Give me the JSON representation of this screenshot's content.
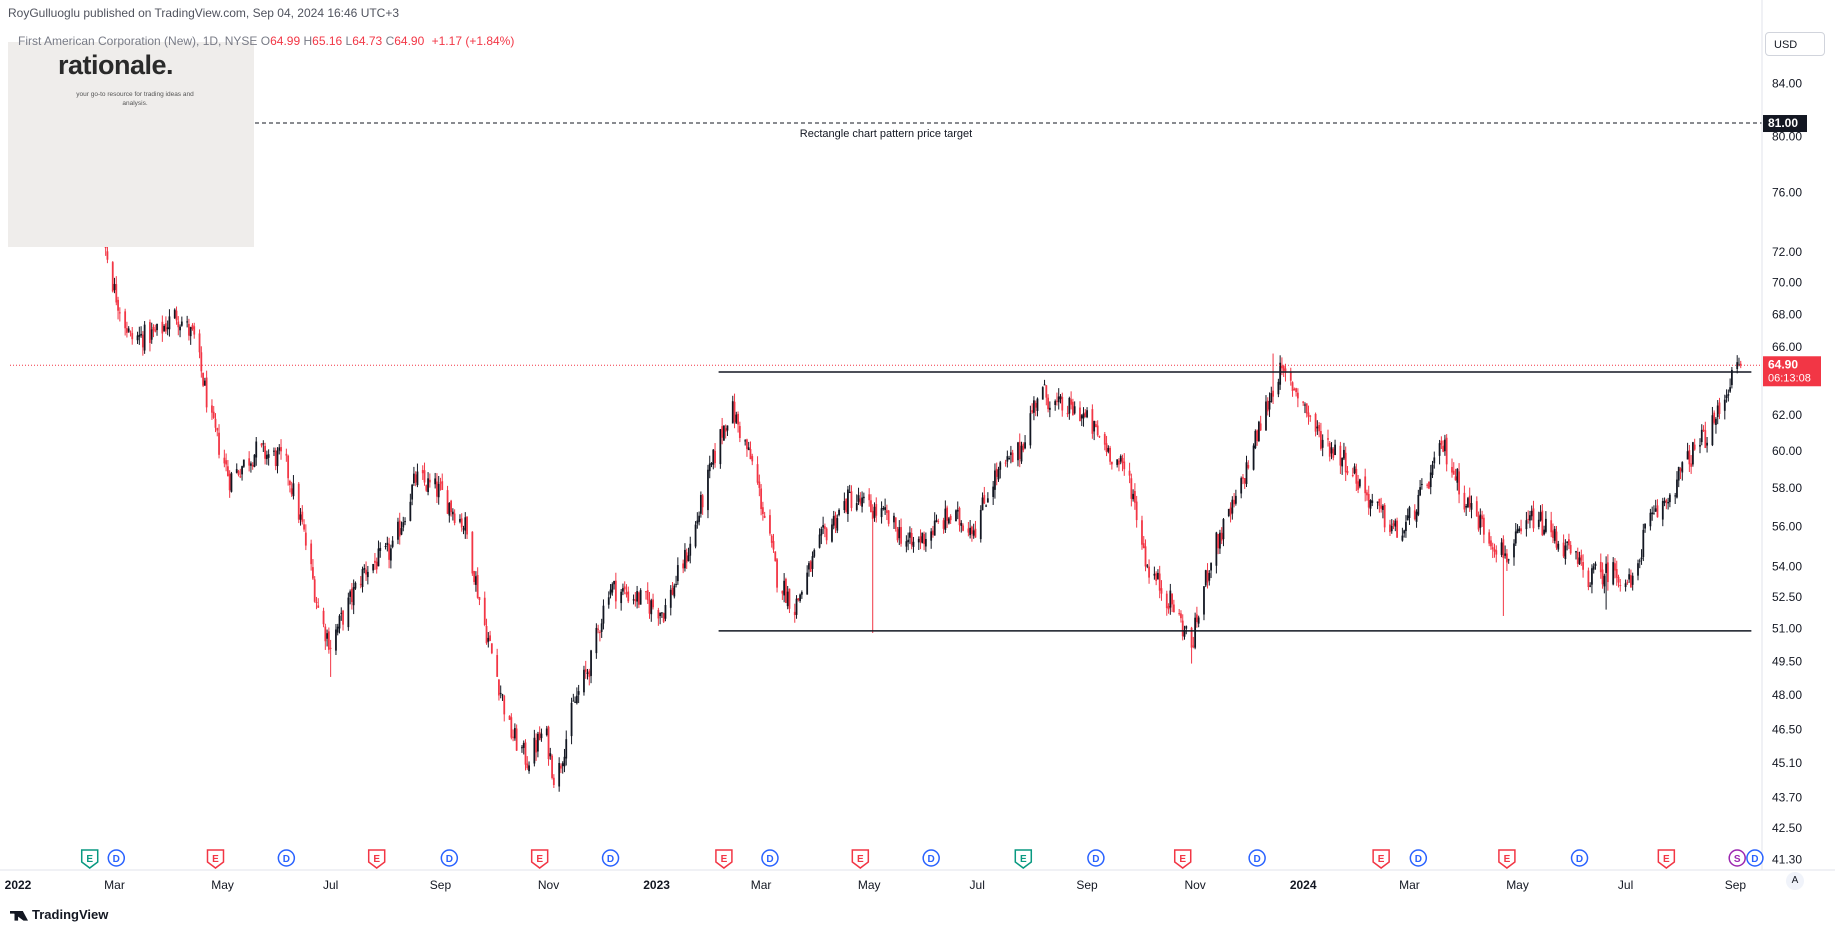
{
  "header": {
    "publisher": "RoyGulluoglu published on TradingView.com, Sep 04, 2024 16:46 UTC+3",
    "symbol": "First American Corporation (New), 1D, NYSE",
    "open_label": "O",
    "open": "64.99",
    "high_label": "H",
    "high": "65.16",
    "low_label": "L",
    "low": "64.73",
    "close_label": "C",
    "close": "64.90",
    "change": "+1.17 (+1.84%)"
  },
  "logo": {
    "title": "rationale.",
    "subtitle": "your go-to resource for trading ideas and analysis."
  },
  "currency": "USD",
  "footer": {
    "brand": "TradingView"
  },
  "autoscale": "A",
  "colors": {
    "up": "#131722",
    "down": "#f23645",
    "current": "#f23645"
  },
  "chart_data": {
    "type": "candlestick",
    "series_name": "First American Corporation (New)",
    "y_scale": "log",
    "ylim": [
      40.9,
      86.2
    ],
    "x_range": [
      "2022-01-01",
      "2024-09-16"
    ],
    "y_ticks": [
      "84.00",
      "80.00",
      "76.00",
      "72.00",
      "70.00",
      "68.00",
      "66.00",
      "62.00",
      "60.00",
      "58.00",
      "56.00",
      "54.00",
      "52.50",
      "51.00",
      "49.50",
      "48.00",
      "46.50",
      "45.10",
      "43.70",
      "42.50",
      "41.30"
    ],
    "x_ticks": [
      {
        "date": "2022-01-01",
        "label": "2022",
        "bold": true
      },
      {
        "date": "2022-03-01",
        "label": "Mar"
      },
      {
        "date": "2022-05-01",
        "label": "May"
      },
      {
        "date": "2022-07-01",
        "label": "Jul"
      },
      {
        "date": "2022-09-01",
        "label": "Sep"
      },
      {
        "date": "2022-11-01",
        "label": "Nov"
      },
      {
        "date": "2023-01-01",
        "label": "2023",
        "bold": true
      },
      {
        "date": "2023-03-01",
        "label": "Mar"
      },
      {
        "date": "2023-05-01",
        "label": "May"
      },
      {
        "date": "2023-07-01",
        "label": "Jul"
      },
      {
        "date": "2023-09-01",
        "label": "Sep"
      },
      {
        "date": "2023-11-01",
        "label": "Nov"
      },
      {
        "date": "2024-01-01",
        "label": "2024",
        "bold": true
      },
      {
        "date": "2024-03-01",
        "label": "Mar"
      },
      {
        "date": "2024-05-01",
        "label": "May"
      },
      {
        "date": "2024-07-01",
        "label": "Jul"
      },
      {
        "date": "2024-09-01",
        "label": "Sep"
      }
    ],
    "anchors": [
      [
        "2022-01-03",
        79.0
      ],
      [
        "2022-01-20",
        80.5
      ],
      [
        "2022-02-01",
        77.0
      ],
      [
        "2022-02-10",
        74.5
      ],
      [
        "2022-02-20",
        74.5
      ],
      [
        "2022-03-01",
        69.5
      ],
      [
        "2022-03-10",
        66.5
      ],
      [
        "2022-03-25",
        66.8
      ],
      [
        "2022-04-05",
        68.0
      ],
      [
        "2022-04-15",
        66.5
      ],
      [
        "2022-04-25",
        61.5
      ],
      [
        "2022-05-05",
        58.5
      ],
      [
        "2022-05-20",
        60.0
      ],
      [
        "2022-06-05",
        59.5
      ],
      [
        "2022-06-15",
        56.0
      ],
      [
        "2022-06-25",
        51.5
      ],
      [
        "2022-07-01",
        50.3
      ],
      [
        "2022-07-20",
        53.8
      ],
      [
        "2022-08-05",
        54.8
      ],
      [
        "2022-08-18",
        58.5
      ],
      [
        "2022-09-01",
        57.8
      ],
      [
        "2022-09-15",
        56.0
      ],
      [
        "2022-09-25",
        51.5
      ],
      [
        "2022-10-10",
        46.5
      ],
      [
        "2022-10-20",
        45.2
      ],
      [
        "2022-10-30",
        46.5
      ],
      [
        "2022-11-05",
        44.2
      ],
      [
        "2022-11-15",
        47.5
      ],
      [
        "2022-11-25",
        49.5
      ],
      [
        "2022-12-05",
        53.0
      ],
      [
        "2022-12-20",
        52.5
      ],
      [
        "2023-01-05",
        51.8
      ],
      [
        "2023-01-20",
        55.0
      ],
      [
        "2023-02-05",
        60.5
      ],
      [
        "2023-02-12",
        62.5
      ],
      [
        "2023-02-25",
        59.0
      ],
      [
        "2023-03-10",
        53.5
      ],
      [
        "2023-03-20",
        52.0
      ],
      [
        "2023-04-05",
        55.5
      ],
      [
        "2023-04-20",
        57.5
      ],
      [
        "2023-05-10",
        56.5
      ],
      [
        "2023-05-25",
        55.0
      ],
      [
        "2023-06-15",
        56.5
      ],
      [
        "2023-06-30",
        56.0
      ],
      [
        "2023-07-10",
        58.5
      ],
      [
        "2023-07-25",
        60.0
      ],
      [
        "2023-08-05",
        63.5
      ],
      [
        "2023-08-15",
        62.5
      ],
      [
        "2023-08-28",
        62.2
      ],
      [
        "2023-09-10",
        60.5
      ],
      [
        "2023-09-25",
        58.5
      ],
      [
        "2023-10-05",
        54.0
      ],
      [
        "2023-10-20",
        52.0
      ],
      [
        "2023-10-30",
        50.2
      ],
      [
        "2023-11-10",
        54.5
      ],
      [
        "2023-11-25",
        57.5
      ],
      [
        "2023-12-08",
        61.5
      ],
      [
        "2023-12-18",
        64.5
      ],
      [
        "2023-12-28",
        63.5
      ],
      [
        "2024-01-10",
        60.8
      ],
      [
        "2024-01-25",
        59.5
      ],
      [
        "2024-02-10",
        57.0
      ],
      [
        "2024-02-25",
        55.5
      ],
      [
        "2024-03-10",
        58.0
      ],
      [
        "2024-03-20",
        60.3
      ],
      [
        "2024-04-01",
        57.5
      ],
      [
        "2024-04-15",
        55.5
      ],
      [
        "2024-04-25",
        54.5
      ],
      [
        "2024-05-10",
        56.5
      ],
      [
        "2024-05-25",
        55.2
      ],
      [
        "2024-06-10",
        53.5
      ],
      [
        "2024-06-25",
        53.8
      ],
      [
        "2024-07-05",
        53.0
      ],
      [
        "2024-07-12",
        55.8
      ],
      [
        "2024-07-25",
        57.5
      ],
      [
        "2024-08-05",
        59.5
      ],
      [
        "2024-08-20",
        61.5
      ],
      [
        "2024-08-28",
        63.8
      ],
      [
        "2024-09-04",
        64.9
      ]
    ],
    "extremes": [
      [
        "2022-01-18",
        82.0,
        "high"
      ],
      [
        "2022-07-01",
        48.8,
        "low"
      ],
      [
        "2022-11-05",
        43.4,
        "low"
      ],
      [
        "2023-02-12",
        64.4,
        "high"
      ],
      [
        "2023-05-03",
        50.8,
        "low"
      ],
      [
        "2023-10-30",
        49.4,
        "low"
      ],
      [
        "2023-12-15",
        65.6,
        "high"
      ],
      [
        "2024-04-23",
        51.6,
        "low"
      ],
      [
        "2024-06-20",
        51.9,
        "low"
      ]
    ],
    "lines": [
      {
        "type": "horizontal-dashed",
        "price": 81.0,
        "label": "Rectangle chart pattern price target"
      },
      {
        "type": "segment",
        "price": 64.5,
        "from": "2023-02-05",
        "to": "2024-09-10"
      },
      {
        "type": "segment",
        "price": 50.9,
        "from": "2023-02-05",
        "to": "2024-09-10"
      }
    ],
    "current_price": {
      "value": 64.9,
      "label": "64.90",
      "countdown": "06:13:08"
    },
    "target_price": {
      "value": 81.0,
      "label": "81.00"
    },
    "events": [
      {
        "date": "2022-02-15",
        "kind": "E",
        "color": "#089981"
      },
      {
        "date": "2022-03-02",
        "kind": "D",
        "color": "#2962ff"
      },
      {
        "date": "2022-04-27",
        "kind": "E",
        "color": "#f23645"
      },
      {
        "date": "2022-06-06",
        "kind": "D",
        "color": "#2962ff"
      },
      {
        "date": "2022-07-27",
        "kind": "E",
        "color": "#f23645"
      },
      {
        "date": "2022-09-06",
        "kind": "D",
        "color": "#2962ff"
      },
      {
        "date": "2022-10-27",
        "kind": "E",
        "color": "#f23645"
      },
      {
        "date": "2022-12-06",
        "kind": "D",
        "color": "#2962ff"
      },
      {
        "date": "2023-02-08",
        "kind": "E",
        "color": "#f23645"
      },
      {
        "date": "2023-03-06",
        "kind": "D",
        "color": "#2962ff"
      },
      {
        "date": "2023-04-26",
        "kind": "E",
        "color": "#f23645"
      },
      {
        "date": "2023-06-05",
        "kind": "D",
        "color": "#2962ff"
      },
      {
        "date": "2023-07-27",
        "kind": "E",
        "color": "#089981"
      },
      {
        "date": "2023-09-06",
        "kind": "D",
        "color": "#2962ff"
      },
      {
        "date": "2023-10-25",
        "kind": "E",
        "color": "#f23645"
      },
      {
        "date": "2023-12-06",
        "kind": "D",
        "color": "#2962ff"
      },
      {
        "date": "2024-02-14",
        "kind": "E",
        "color": "#f23645"
      },
      {
        "date": "2024-03-06",
        "kind": "D",
        "color": "#2962ff"
      },
      {
        "date": "2024-04-25",
        "kind": "E",
        "color": "#f23645"
      },
      {
        "date": "2024-06-05",
        "kind": "D",
        "color": "#2962ff"
      },
      {
        "date": "2024-07-24",
        "kind": "E",
        "color": "#f23645"
      },
      {
        "date": "2024-09-02",
        "kind": "S",
        "color": "#9c27b0"
      },
      {
        "date": "2024-09-12",
        "kind": "D",
        "color": "#2962ff"
      }
    ]
  }
}
